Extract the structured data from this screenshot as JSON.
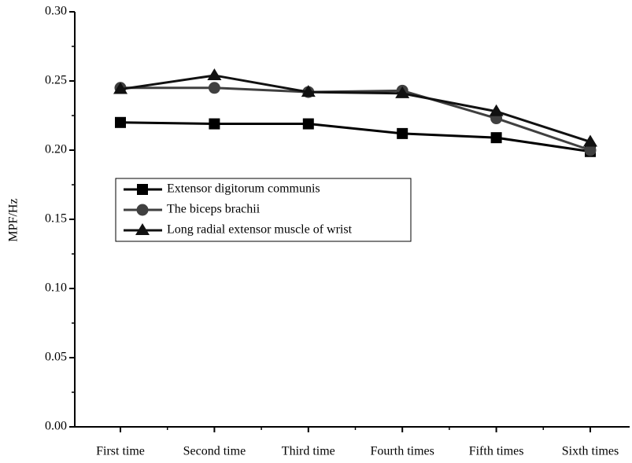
{
  "chart_data": {
    "type": "line",
    "ylabel": "MPF/Hz",
    "categories": [
      "First time",
      "Second time",
      "Third time",
      "Fourth times",
      "Fifth times",
      "Sixth times"
    ],
    "series": [
      {
        "name": "Extensor digitorum communis",
        "color": "#000000",
        "marker": "square",
        "values": [
          0.22,
          0.219,
          0.219,
          0.212,
          0.209,
          0.199
        ]
      },
      {
        "name": "The biceps brachii",
        "color": "#404040",
        "marker": "circle",
        "values": [
          0.245,
          0.245,
          0.242,
          0.243,
          0.223,
          0.2
        ]
      },
      {
        "name": "Long radial extensor muscle of wrist",
        "color": "#111111",
        "marker": "triangle",
        "values": [
          0.244,
          0.254,
          0.242,
          0.241,
          0.228,
          0.206
        ]
      }
    ],
    "ylim": [
      0,
      0.3
    ],
    "yticks": [
      {
        "value": 0,
        "label": "0.00"
      },
      {
        "value": 0.05,
        "label": "0.05"
      },
      {
        "value": 0.1,
        "label": "0.10"
      },
      {
        "value": 0.15,
        "label": "0.15"
      },
      {
        "value": 0.2,
        "label": "0.20"
      },
      {
        "value": 0.25,
        "label": "0.25"
      },
      {
        "value": 0.3,
        "label": "0.30"
      }
    ],
    "grid": false
  }
}
